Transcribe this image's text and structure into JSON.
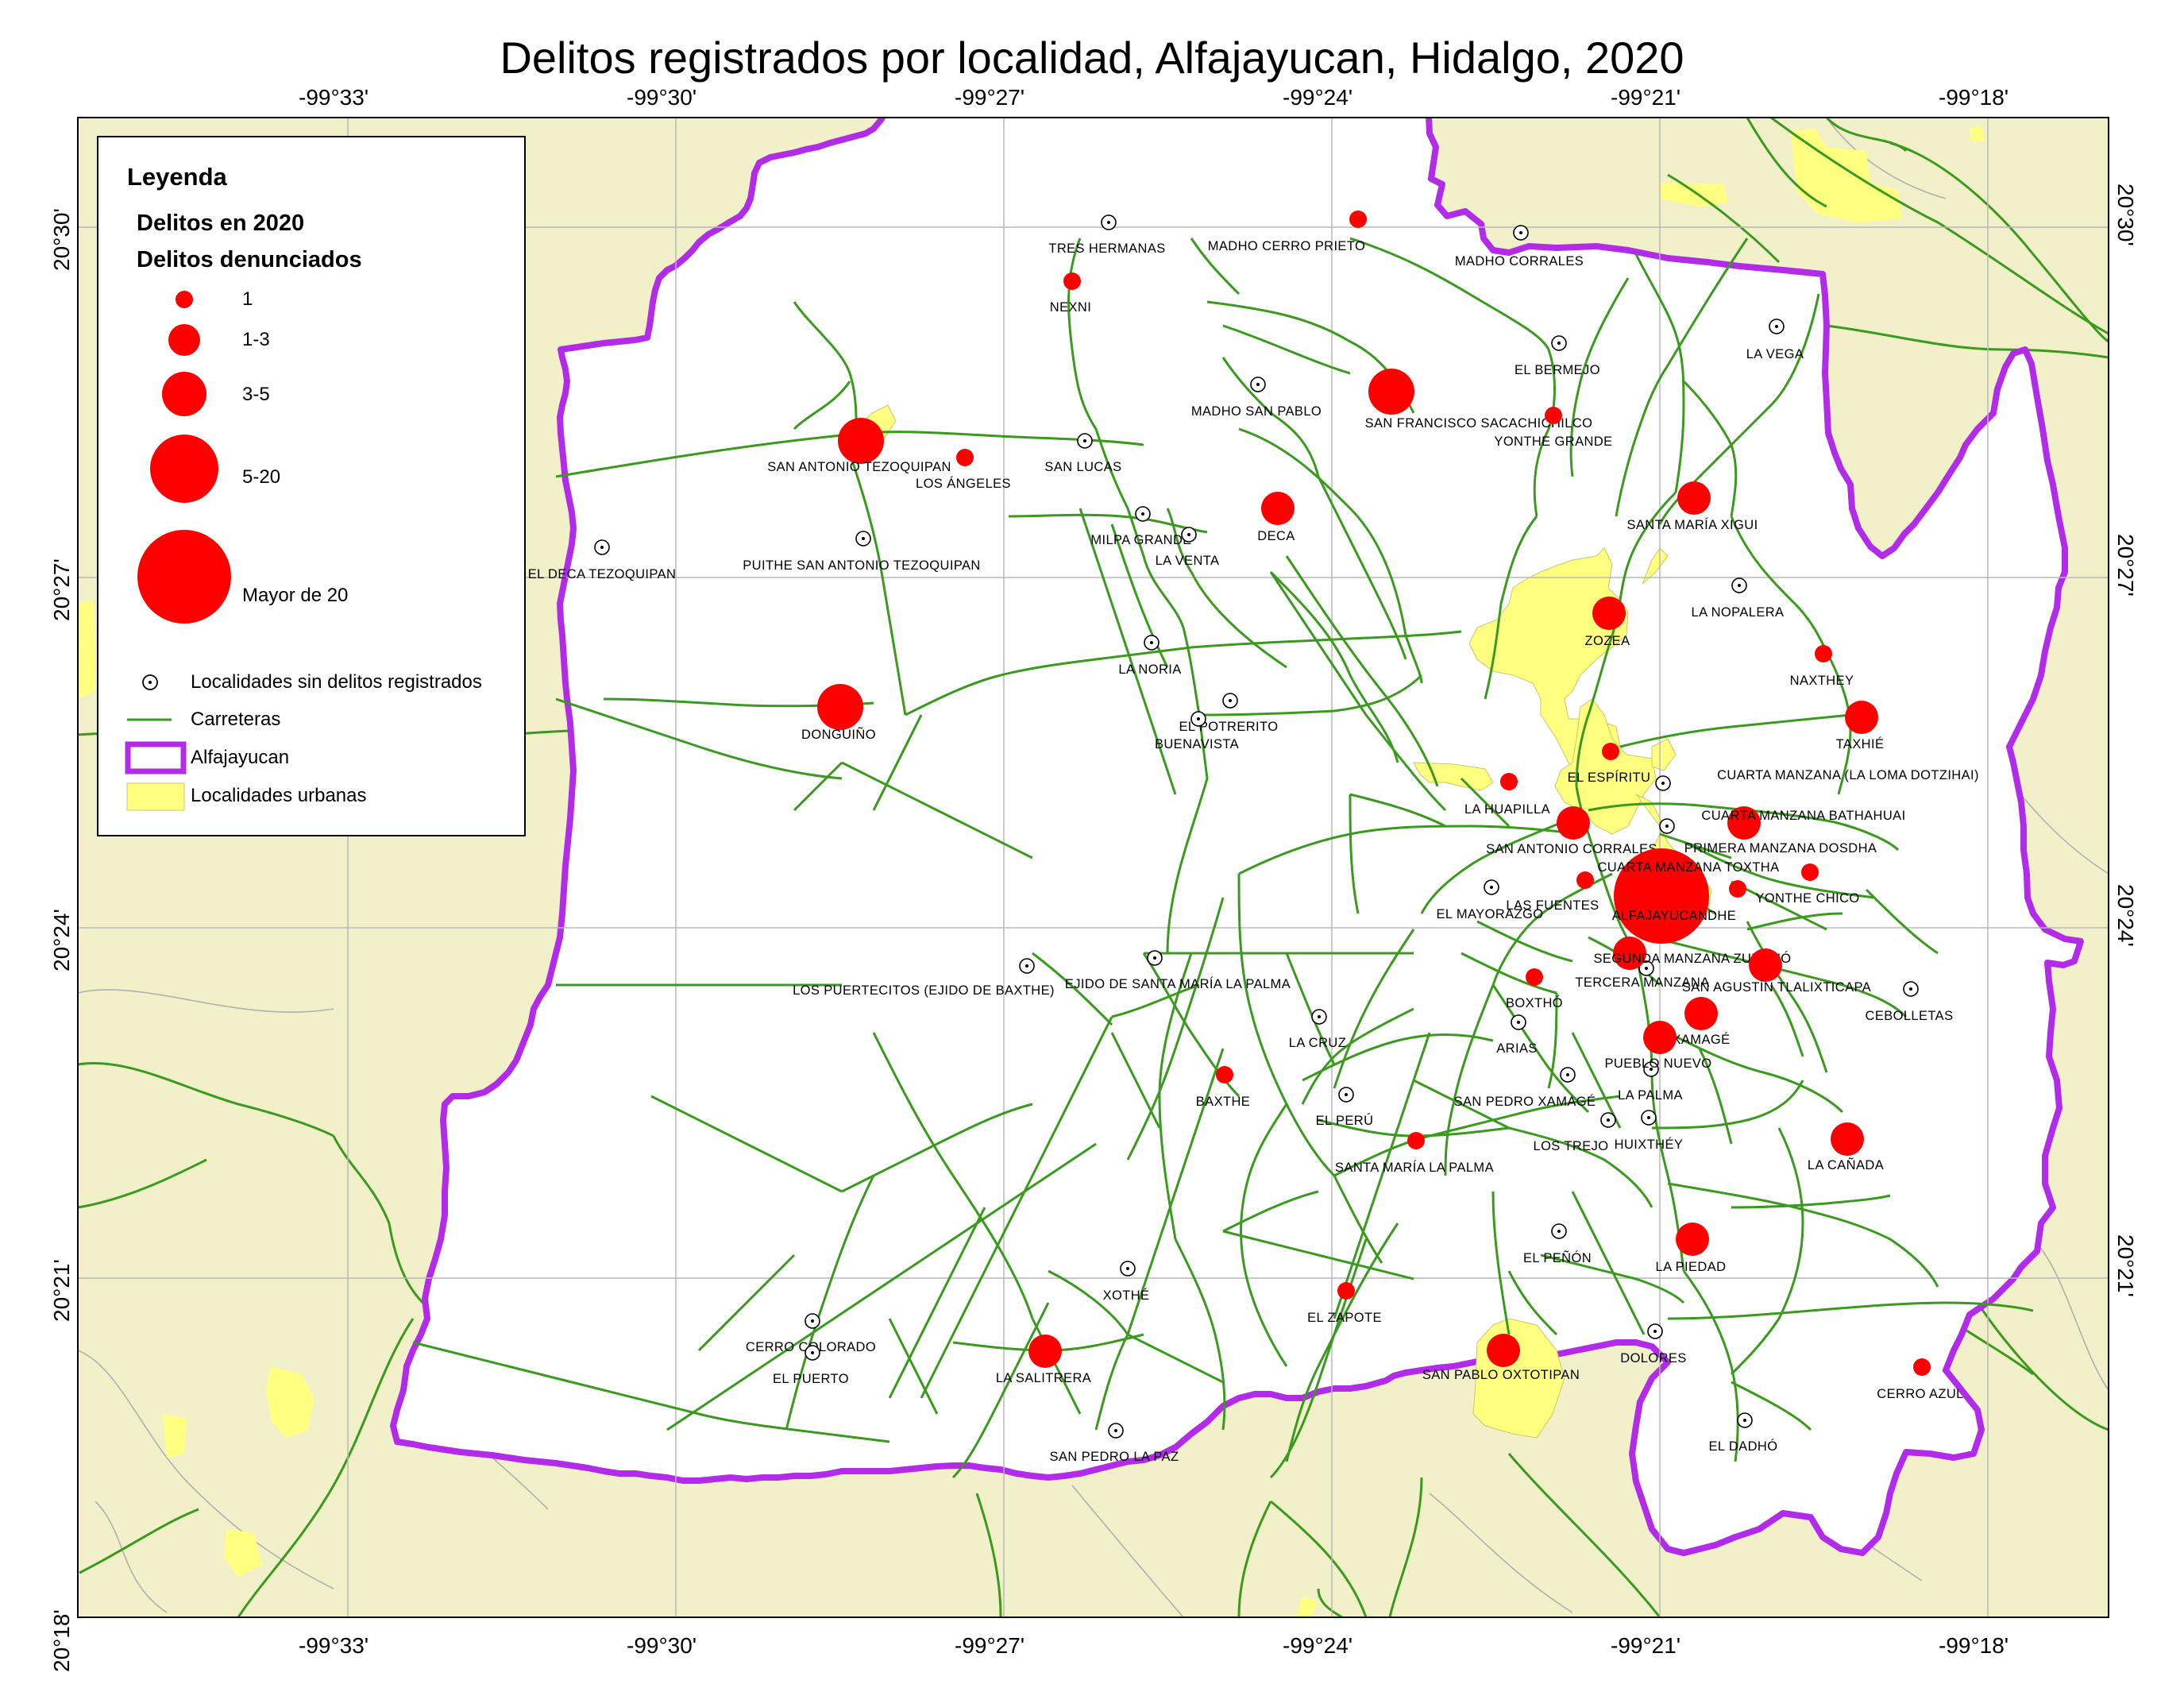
{
  "title": "Delitos registrados por localidad, Alfajayucan, Hidalgo, 2020",
  "colors": {
    "background": "#F2F0C8",
    "municipality_fill": "#FFFFFF",
    "boundary": "#B22BE8",
    "roads": "#3A9A1E",
    "urban": "#FFFF80",
    "crime_points": "#FF0000",
    "grid": "#B8B8B8"
  },
  "longitude_labels": [
    "-99°33'",
    "-99°30'",
    "-99°27'",
    "-99°24'",
    "-99°21'",
    "-99°18'"
  ],
  "latitude_labels": [
    "20°30'",
    "20°27'",
    "20°24'",
    "20°21'",
    "20°18'"
  ],
  "legend": {
    "title": "Leyenda",
    "subtitle1": "Delitos en 2020",
    "subtitle2": "Delitos denunciados",
    "classes": [
      "1",
      "1-3",
      "3-5",
      "5-20",
      "Mayor de 20"
    ],
    "no_crime": "Localidades sin delitos registrados",
    "roads": "Carreteras",
    "municipality": "Alfajayucan",
    "urban": "Localidades urbanas"
  },
  "localities_with_crimes": [
    {
      "name": "MADHO CERRO PRIETO",
      "class": 1
    },
    {
      "name": "NEXNI",
      "class": 1
    },
    {
      "name": "SAN ANTONIO TEZOQUIPAN",
      "class": 3
    },
    {
      "name": "LOS ÁNGELES",
      "class": 1
    },
    {
      "name": "SAN FRANCISCO SACACHICHILCO",
      "class": 3
    },
    {
      "name": "YONTHE GRANDE",
      "class": 1
    },
    {
      "name": "DECA",
      "class": 2
    },
    {
      "name": "SANTA MARÍA XIGUI",
      "class": 2
    },
    {
      "name": "ZOZEA",
      "class": 2
    },
    {
      "name": "NAXTHEY",
      "class": 1
    },
    {
      "name": "DONGUIÑO",
      "class": 3
    },
    {
      "name": "TAXHIÉ",
      "class": 2
    },
    {
      "name": "EL ESPÍRITU",
      "class": 1
    },
    {
      "name": "LA HUAPILLA",
      "class": 1
    },
    {
      "name": "SAN ANTONIO CORRALES",
      "class": 2
    },
    {
      "name": "CUARTA MANZANA BATHAHUAI",
      "class": 2
    },
    {
      "name": "LAS FUENTES",
      "class": 1
    },
    {
      "name": "ALFAJAYUCAN",
      "class": 5
    },
    {
      "name": "CUARTA MANZANA TOXTHA",
      "class": 1
    },
    {
      "name": "YONTHE CHICO",
      "class": 1
    },
    {
      "name": "SEGUNDA MANZANA ZUNDHÓ",
      "class": 2
    },
    {
      "name": "SAN AGUSTÍN TLALIXTICAPA",
      "class": 2
    },
    {
      "name": "BOXTHÓ",
      "class": 1
    },
    {
      "name": "XAMAGÉ",
      "class": 2
    },
    {
      "name": "PUEBLO NUEVO",
      "class": 2
    },
    {
      "name": "BAXTHE",
      "class": 1
    },
    {
      "name": "SANTA MARÍA LA PALMA",
      "class": 1
    },
    {
      "name": "LA CAÑADA",
      "class": 2
    },
    {
      "name": "LA PIEDAD",
      "class": 2
    },
    {
      "name": "EL ZAPOTE",
      "class": 1
    },
    {
      "name": "LA SALITRERA",
      "class": 2
    },
    {
      "name": "SAN PABLO OXTOTIPAN",
      "class": 2
    },
    {
      "name": "CERRO AZUL",
      "class": 1
    }
  ],
  "localities_without_crimes": [
    "TRES HERMANAS",
    "MADHO CORRALES",
    "EL BERMEJO",
    "LA VEGA",
    "MADHO SAN PABLO",
    "SAN LUCAS",
    "MILPA GRANDE",
    "LA VENTA",
    "EL DECA TEZOQUIPAN",
    "PUITHE SAN ANTONIO TEZOQUIPAN",
    "LA NOPALERA",
    "LA NORIA",
    "EL POTRERITO",
    "BUENAVISTA",
    "CUARTA MANZANA (LA LOMA DOTZIHAI)",
    "PRIMERA MANZANA DOSDHA",
    "EL MAYORAZGO",
    "EL DOYDHE",
    "TERCERA MANZANA",
    "LOS PUERTECITOS (EJIDO DE BAXTHE)",
    "EJIDO DE SANTA MARÍA LA PALMA",
    "LA CRUZ",
    "ARIAS",
    "CEBOLLETAS",
    "SAN PEDRO XAMAGÉ",
    "LA PALMA",
    "EL PERÚ",
    "LOS TREJO",
    "HUIXTHÉY",
    "EL PEÑÓN",
    "XOTHÉ",
    "CERRO COLORADO",
    "EL PUERTO",
    "DOLORES",
    "SAN PEDRO LA PAZ",
    "EL DADHÓ"
  ]
}
